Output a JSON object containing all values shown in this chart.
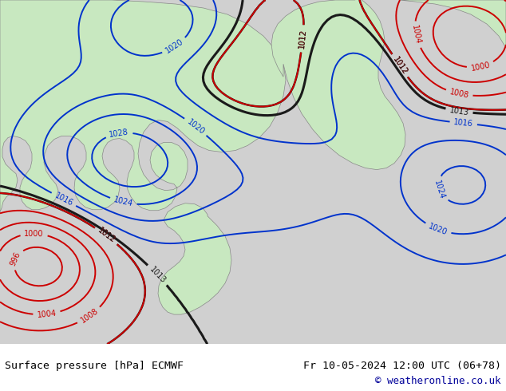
{
  "title_left": "Surface pressure [hPa] ECMWF",
  "title_right": "Fr 10-05-2024 12:00 UTC (06+78)",
  "copyright": "© weatheronline.co.uk",
  "bg_color": "#d0d0d0",
  "land_color": "#c8e6c8",
  "ocean_color": "#d8d8d8",
  "figsize": [
    6.34,
    4.9
  ],
  "dpi": 100,
  "bottom_bar_color": "#ffffff",
  "bottom_text_color": "#000000",
  "title_color": "#000000"
}
